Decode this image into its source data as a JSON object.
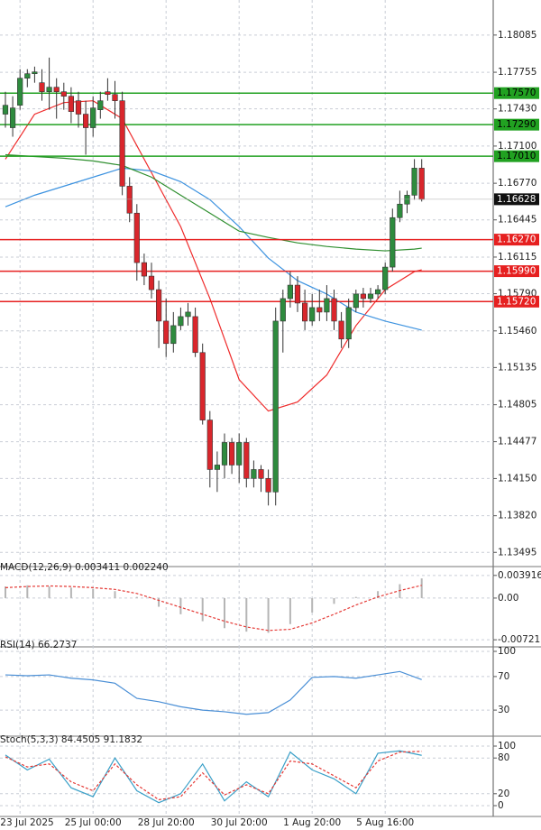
{
  "chart_data": [
    {
      "type": "candlestick",
      "categories": [
        null,
        null,
        "23 Jul 2025",
        null,
        null,
        null,
        null,
        null,
        null,
        null,
        null,
        null,
        "25 Jul 00:00",
        null,
        null,
        null,
        null,
        null,
        null,
        null,
        null,
        null,
        "28 Jul 20:00",
        null,
        null,
        null,
        null,
        null,
        null,
        null,
        null,
        null,
        "30 Jul 20:00",
        null,
        null,
        null,
        null,
        null,
        null,
        null,
        null,
        null,
        "1 Aug 20:00",
        null,
        null,
        null,
        null,
        null,
        null,
        null,
        null,
        null,
        "5 Aug 16:00",
        null,
        null,
        null,
        null,
        null
      ],
      "open": [
        1.17383,
        1.17263,
        1.17462,
        1.17702,
        1.17742,
        1.17662,
        1.17582,
        1.17622,
        1.17582,
        1.17542,
        1.17502,
        1.17383,
        1.17263,
        1.17422,
        1.17582,
        1.17558,
        1.17502,
        1.16744,
        1.16505,
        1.16066,
        1.15946,
        1.15826,
        1.15547,
        1.15348,
        1.15507,
        1.15587,
        1.15587,
        1.15268,
        1.14669,
        1.1423,
        1.1427,
        1.1447,
        1.1427,
        1.1447,
        1.14151,
        1.1423,
        1.14151,
        1.14031,
        1.15547,
        1.15747,
        1.15866,
        1.15707,
        1.15547,
        1.15667,
        1.15627,
        1.15747,
        1.15547,
        1.15388,
        1.15667,
        1.15787,
        1.15747,
        1.15787,
        1.15826,
        1.16026,
        1.16465,
        1.16585,
        1.16664,
        1.16904
      ],
      "high": [
        1.17582,
        1.17542,
        1.17782,
        1.17782,
        1.17805,
        1.17782,
        1.17885,
        1.17702,
        1.17662,
        1.17622,
        1.17582,
        1.17502,
        1.17542,
        1.17582,
        1.17702,
        1.17678,
        1.17582,
        1.16824,
        1.16585,
        1.16146,
        1.16066,
        1.15906,
        1.15747,
        1.15627,
        1.15667,
        1.15707,
        1.15667,
        1.15348,
        1.14749,
        1.1439,
        1.1455,
        1.1451,
        1.1455,
        1.1451,
        1.1431,
        1.1427,
        1.1423,
        1.15667,
        1.15826,
        1.15986,
        1.15946,
        1.15826,
        1.15787,
        1.15826,
        1.15866,
        1.15826,
        1.15627,
        1.15747,
        1.15826,
        1.15842,
        1.15842,
        1.15866,
        1.16066,
        1.16545,
        1.16704,
        1.16704,
        1.16984,
        1.16984
      ],
      "low": [
        1.17263,
        1.17183,
        1.17422,
        1.17622,
        1.17662,
        1.17502,
        1.17422,
        1.17343,
        1.17422,
        1.17303,
        1.17263,
        1.17023,
        1.17183,
        1.17343,
        1.17502,
        1.17343,
        1.16664,
        1.16425,
        1.15906,
        1.15866,
        1.15747,
        1.15308,
        1.15228,
        1.15268,
        1.15467,
        1.15507,
        1.15228,
        1.14629,
        1.14071,
        1.14031,
        1.14151,
        1.14191,
        1.14111,
        1.14071,
        1.14071,
        1.14031,
        1.13911,
        1.13911,
        1.15268,
        1.15667,
        1.15627,
        1.15467,
        1.15507,
        1.15547,
        1.15547,
        1.15467,
        1.15308,
        1.15308,
        1.15627,
        1.15667,
        1.15707,
        1.15747,
        1.15787,
        1.15986,
        1.16425,
        1.16505,
        1.16624,
        1.16608
      ],
      "close": [
        1.17462,
        1.17438,
        1.17702,
        1.17742,
        1.17758,
        1.17582,
        1.17622,
        1.17582,
        1.17542,
        1.17406,
        1.17383,
        1.17263,
        1.17438,
        1.17502,
        1.17558,
        1.17502,
        1.16744,
        1.16505,
        1.16066,
        1.15946,
        1.15826,
        1.15547,
        1.15348,
        1.15507,
        1.15587,
        1.15627,
        1.15268,
        1.14669,
        1.1423,
        1.1427,
        1.1447,
        1.1427,
        1.1447,
        1.14151,
        1.1423,
        1.14151,
        1.14031,
        1.15547,
        1.15747,
        1.15866,
        1.15707,
        1.15547,
        1.15667,
        1.15627,
        1.15747,
        1.15547,
        1.15388,
        1.15667,
        1.15787,
        1.15747,
        1.15787,
        1.15826,
        1.16026,
        1.16465,
        1.16585,
        1.16664,
        1.16904,
        1.16628
      ],
      "up_color": "#2e8b3e",
      "down_color": "#d9262c",
      "ylim": [
        1.13377,
        1.1838
      ],
      "yticks": [
        1.18085,
        1.17755,
        {
          "value": 1.1743,
          "label": "1.17430"
        },
        {
          "value": 1.171,
          "label": "1.17100"
        },
        {
          "value": 1.1677,
          "label": "1.16770"
        },
        1.16445,
        1.16115,
        {
          "value": 1.1579,
          "label": "1.15790"
        },
        {
          "value": 1.1546,
          "label": "1.15460"
        },
        1.15135,
        1.14805,
        1.14477,
        {
          "value": 1.1415,
          "label": "1.14150"
        },
        {
          "value": 1.1382,
          "label": "1.13820"
        },
        1.13495
      ],
      "grid": true,
      "levels": [
        {
          "value": 1.1757,
          "label": "1.17570",
          "color": "#21a121"
        },
        {
          "value": 1.1729,
          "label": "1.17290",
          "color": "#21a121"
        },
        {
          "value": 1.1701,
          "label": "1.17010",
          "color": "#21a121"
        },
        {
          "value": 1.1627,
          "label": "1.16270",
          "color": "#e62020"
        },
        {
          "value": 1.1599,
          "label": "1.15990",
          "color": "#e62020"
        },
        {
          "value": 1.1572,
          "label": "1.15720",
          "color": "#e62020"
        }
      ],
      "last_price": 1.16628,
      "lines": [
        {
          "color": "#ef2b2b",
          "x": [
            0,
            4,
            8,
            12,
            16,
            20,
            24,
            28,
            32,
            36,
            40,
            44,
            48,
            52,
            56,
            57
          ],
          "values": [
            1.16984,
            1.17383,
            1.17486,
            1.17502,
            1.17343,
            1.16864,
            1.16385,
            1.15747,
            1.15028,
            1.14749,
            1.14829,
            1.15068,
            1.15507,
            1.15826,
            1.15986,
            1.16002
          ]
        },
        {
          "color": "#3d93e0",
          "x": [
            0,
            4,
            8,
            12,
            16,
            20,
            24,
            28,
            32,
            36,
            40,
            44,
            48,
            52,
            56,
            57
          ],
          "values": [
            1.16561,
            1.16664,
            1.16744,
            1.16824,
            1.16904,
            1.1688,
            1.16784,
            1.16624,
            1.16385,
            1.16106,
            1.15906,
            1.15787,
            1.15627,
            1.15547,
            1.15483,
            1.15467
          ]
        },
        {
          "color": "#2f8f2f",
          "x": [
            0,
            4,
            8,
            12,
            16,
            20,
            24,
            28,
            32,
            36,
            40,
            44,
            48,
            52,
            56,
            57
          ],
          "values": [
            1.17023,
            1.17007,
            1.16992,
            1.16968,
            1.16928,
            1.16824,
            1.16664,
            1.16505,
            1.16345,
            1.16289,
            1.16241,
            1.16209,
            1.16186,
            1.1617,
            1.16186,
            1.16194
          ]
        }
      ]
    },
    {
      "type": "macd",
      "title": "MACD(12,26,9) 0.003411 0.002240",
      "ylim": [
        -0.00828,
        0.00498
      ],
      "yticks": [
        0.003916,
        {
          "value": 0,
          "label": "0.00"
        },
        -0.007211
      ],
      "series": [
        {
          "style": "histogram",
          "color": "#b5b5b5",
          "x": [
            0,
            3,
            6,
            9,
            12,
            15,
            18,
            21,
            24,
            27,
            30,
            33,
            36,
            39,
            42,
            45,
            48,
            51,
            54,
            57
          ],
          "values": [
            0.002,
            0.0022,
            0.002,
            0.0018,
            0.0016,
            0.0012,
            0.0002,
            -0.0015,
            -0.0028,
            -0.004,
            -0.0052,
            -0.0058,
            -0.006,
            -0.0045,
            -0.0025,
            -0.001,
            0.0002,
            0.0012,
            0.0024,
            0.0034
          ]
        },
        {
          "style": "dashed",
          "color": "#e53935",
          "x": [
            0,
            3,
            6,
            9,
            12,
            15,
            18,
            21,
            24,
            27,
            30,
            33,
            36,
            39,
            42,
            45,
            48,
            51,
            54,
            57
          ],
          "values": [
            0.0018,
            0.002,
            0.0021,
            0.002,
            0.0018,
            0.0015,
            0.0008,
            -0.0004,
            -0.0016,
            -0.0028,
            -0.004,
            -0.005,
            -0.0056,
            -0.0054,
            -0.0043,
            -0.0028,
            -0.0012,
            0.0002,
            0.0013,
            0.0022
          ]
        }
      ]
    },
    {
      "type": "line",
      "title": "RSI(14) 66.2737",
      "ylim": [
        0,
        100
      ],
      "yticks": [
        100,
        70,
        30
      ],
      "series": [
        {
          "style": "solid",
          "color": "#4a8fd6",
          "x": [
            0,
            3,
            6,
            9,
            12,
            15,
            18,
            21,
            24,
            27,
            30,
            33,
            36,
            39,
            42,
            45,
            48,
            51,
            54,
            57
          ],
          "values": [
            72,
            71,
            72,
            68,
            66,
            62,
            44,
            40,
            34,
            30,
            28,
            25,
            27,
            42,
            69,
            70,
            68,
            72,
            76,
            66.2737
          ]
        }
      ]
    },
    {
      "type": "line",
      "title": "Stoch(5,3,3) 84.4505 91.1832",
      "ylim": [
        0,
        100
      ],
      "yticks": [
        100,
        80,
        20,
        0
      ],
      "series": [
        {
          "style": "solid",
          "color": "#3aa0c8",
          "x": [
            0,
            3,
            6,
            9,
            12,
            15,
            18,
            21,
            24,
            27,
            30,
            33,
            36,
            39,
            42,
            45,
            48,
            51,
            54,
            57
          ],
          "values": [
            85,
            60,
            78,
            30,
            15,
            80,
            25,
            5,
            20,
            70,
            8,
            40,
            15,
            90,
            60,
            45,
            20,
            88,
            92,
            84.4505
          ]
        },
        {
          "style": "dashed",
          "color": "#e53935",
          "x": [
            0,
            3,
            6,
            9,
            12,
            15,
            18,
            21,
            24,
            27,
            30,
            33,
            36,
            39,
            42,
            45,
            48,
            51,
            54,
            57
          ],
          "values": [
            82,
            65,
            70,
            40,
            25,
            70,
            35,
            10,
            15,
            55,
            18,
            35,
            20,
            75,
            70,
            50,
            30,
            75,
            90,
            91.1832
          ]
        }
      ]
    }
  ]
}
